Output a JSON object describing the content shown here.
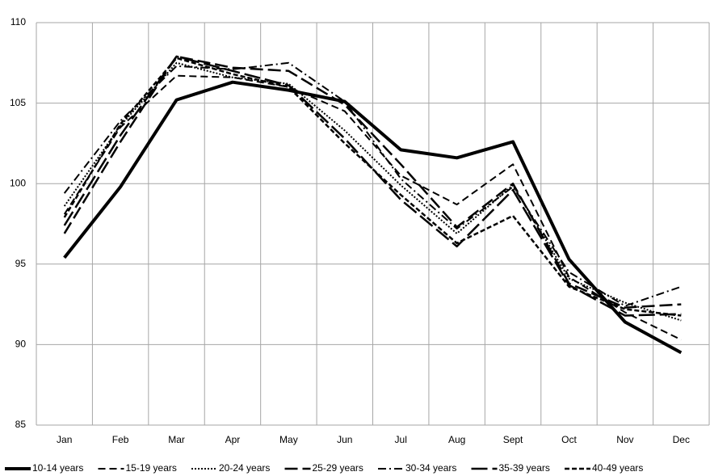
{
  "chart_data": {
    "type": "line",
    "categories": [
      "Jan",
      "Feb",
      "Mar",
      "Apr",
      "May",
      "Jun",
      "Jul",
      "Aug",
      "Sept",
      "Oct",
      "Nov",
      "Dec"
    ],
    "series": [
      {
        "name": "10-14 years",
        "color": "#000000",
        "values": [
          95.4,
          99.8,
          105.2,
          106.3,
          105.8,
          105.1,
          102.1,
          101.6,
          102.6,
          95.3,
          91.4,
          89.5
        ]
      },
      {
        "name": "15-19 years",
        "color": "#000000",
        "values": [
          98.1,
          103.5,
          106.7,
          106.6,
          106.0,
          104.5,
          100.5,
          98.7,
          101.2,
          94.2,
          92.0,
          90.3
        ]
      },
      {
        "name": "20-24 years",
        "color": "#000000",
        "values": [
          98.6,
          103.6,
          107.5,
          106.6,
          106.2,
          103.3,
          99.9,
          96.9,
          99.9,
          94.1,
          92.6,
          91.5
        ]
      },
      {
        "name": "25-29 years",
        "color": "#000000",
        "values": [
          96.9,
          102.6,
          107.9,
          107.2,
          107.0,
          104.9,
          101.2,
          97.3,
          100.0,
          93.8,
          92.3,
          92.5
        ]
      },
      {
        "name": "30-34 years",
        "color": "#000000",
        "values": [
          99.4,
          103.9,
          107.3,
          107.1,
          107.5,
          105.1,
          100.3,
          97.2,
          99.8,
          94.5,
          92.4,
          93.6
        ]
      },
      {
        "name": "35-39 years",
        "color": "#000000",
        "values": [
          97.4,
          103.0,
          107.9,
          107.0,
          106.1,
          102.8,
          99.0,
          96.1,
          99.6,
          93.7,
          91.8,
          91.9
        ]
      },
      {
        "name": "40-49 years",
        "color": "#000000",
        "values": [
          97.9,
          103.7,
          107.8,
          106.8,
          106.0,
          102.5,
          99.3,
          96.3,
          98.0,
          93.6,
          92.2,
          91.8
        ]
      }
    ],
    "ylim": [
      85,
      110
    ],
    "yticks": [
      85,
      90,
      95,
      100,
      105,
      110
    ],
    "grid": true,
    "legend": "bottom"
  }
}
